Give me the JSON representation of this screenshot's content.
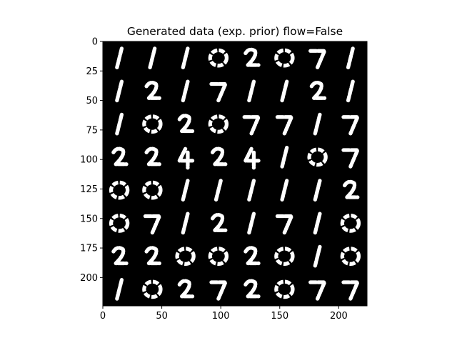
{
  "chart_data": {
    "type": "heatmap",
    "title": "Generated data (exp. prior) flow=False",
    "xlabel": "",
    "ylabel": "",
    "xlim": [
      0,
      224
    ],
    "ylim": [
      224,
      0
    ],
    "xticks": [
      0,
      50,
      100,
      150,
      200
    ],
    "yticks": [
      0,
      25,
      50,
      75,
      100,
      125,
      150,
      175,
      200
    ],
    "grid": false,
    "colormap": "binary (black background, white strokes)",
    "image_grid": {
      "rows": 8,
      "cols": 8,
      "cell_size": 28
    },
    "digits": [
      [
        "1",
        "1",
        "1",
        "0",
        "2",
        "0",
        "7",
        "1"
      ],
      [
        "1",
        "2",
        "1",
        "7",
        "1",
        "1",
        "2",
        "1"
      ],
      [
        "1",
        "0",
        "2",
        "0",
        "7",
        "7",
        "1",
        "7"
      ],
      [
        "2",
        "2",
        "4",
        "2",
        "4",
        "1",
        "0",
        "7"
      ],
      [
        "0",
        "0",
        "1",
        "1",
        "1",
        "1",
        "1",
        "2"
      ],
      [
        "0",
        "7",
        "1",
        "2",
        "1",
        "7",
        "1",
        "0"
      ],
      [
        "2",
        "2",
        "0",
        "0",
        "2",
        "0",
        "1",
        "0"
      ],
      [
        "1",
        "0",
        "2",
        "7",
        "2",
        "0",
        "7",
        "7"
      ]
    ]
  },
  "colors": {
    "background": "#000000",
    "stroke": "#ffffff",
    "axis": "#000000"
  }
}
